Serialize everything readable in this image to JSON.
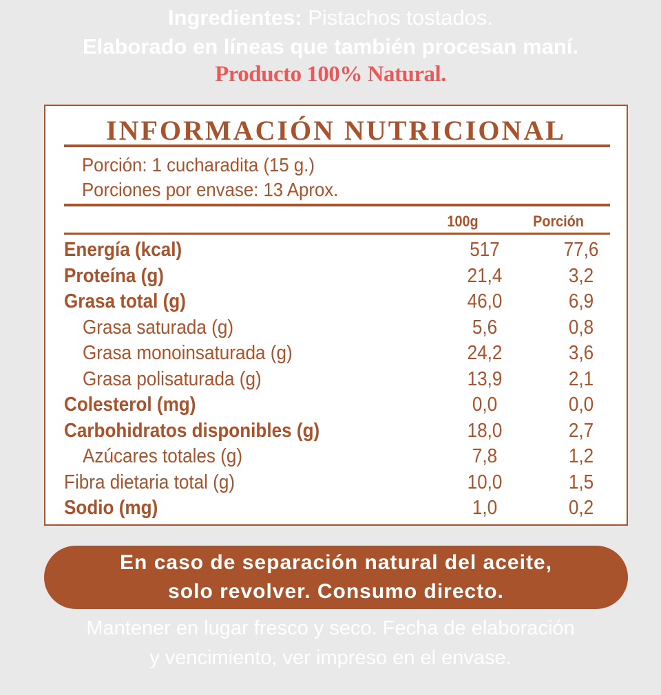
{
  "ingredients": {
    "label": "Ingredientes:",
    "text": " Pistachos tostados.",
    "allergen": "Elaborado en líneas que también procesan maní.",
    "natural": "Producto 100% Natural."
  },
  "colors": {
    "brand": "#a9532c",
    "accent": "#e85a5a",
    "background": "#e9e9ea"
  },
  "panel": {
    "title": "INFORMACIÓN NUTRICIONAL",
    "serving": "Porción: 1 cucharadita (15 g.)",
    "servings_per_container": "Porciones por envase: 13 Aprox.",
    "columns": [
      "100g",
      "Porción"
    ],
    "rows": [
      {
        "name": "Energía (kcal)",
        "per100": "517",
        "portion": "77,6",
        "bold": true,
        "indent": false
      },
      {
        "name": "Proteína (g)",
        "per100": "21,4",
        "portion": "3,2",
        "bold": true,
        "indent": false
      },
      {
        "name": "Grasa total (g)",
        "per100": "46,0",
        "portion": "6,9",
        "bold": true,
        "indent": false
      },
      {
        "name": "Grasa saturada (g)",
        "per100": "5,6",
        "portion": "0,8",
        "bold": false,
        "indent": true
      },
      {
        "name": "Grasa monoinsaturada (g)",
        "per100": "24,2",
        "portion": "3,6",
        "bold": false,
        "indent": true
      },
      {
        "name": "Grasa polisaturada (g)",
        "per100": "13,9",
        "portion": "2,1",
        "bold": false,
        "indent": true
      },
      {
        "name": "Colesterol (mg)",
        "per100": "0,0",
        "portion": "0,0",
        "bold": true,
        "indent": false
      },
      {
        "name": "Carbohidratos disponibles (g)",
        "per100": "18,0",
        "portion": "2,7",
        "bold": true,
        "indent": false
      },
      {
        "name": "Azúcares totales (g)",
        "per100": "7,8",
        "portion": "1,2",
        "bold": false,
        "indent": true
      },
      {
        "name": "Fibra dietaria total (g)",
        "per100": "10,0",
        "portion": "1,5",
        "bold": false,
        "indent": false
      },
      {
        "name": "Sodio (mg)",
        "per100": "1,0",
        "portion": "0,2",
        "bold": true,
        "indent": false
      }
    ]
  },
  "notice": {
    "line1": "En caso de separación natural del aceite,",
    "line2": "solo revolver. Consumo directo."
  },
  "storage": {
    "line1": "Mantener en lugar fresco y seco. Fecha de elaboración",
    "line2": "y vencimiento, ver impreso en el envase."
  }
}
